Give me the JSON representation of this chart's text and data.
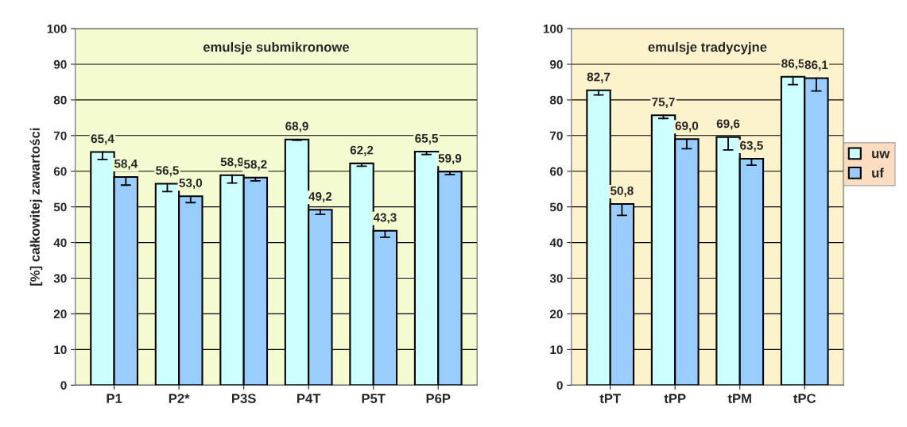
{
  "chart_data": [
    {
      "type": "bar",
      "title": "emulsje submikronowe",
      "ylabel": "[%] całkowitej zawartości",
      "categories": [
        "P1",
        "P2*",
        "P3S",
        "P4T",
        "P5T",
        "P6P"
      ],
      "ylim": [
        0,
        100
      ],
      "yticks": [
        0,
        10,
        20,
        30,
        40,
        50,
        60,
        70,
        80,
        90,
        100
      ],
      "grid": "y",
      "legend": false,
      "series": [
        {
          "color": "#ccffff",
          "values": [
            65.4,
            56.5,
            58.9,
            68.9,
            62.2,
            65.5
          ],
          "value_labels": [
            "65,4",
            "56,5",
            "58,9",
            "68,9",
            "62,2",
            "65,5"
          ],
          "errors": [
            [
              63.3,
              65.4
            ],
            [
              54.3,
              56.5
            ],
            [
              56.7,
              58.9
            ],
            [
              68.7,
              68.9
            ],
            [
              61.4,
              62.2
            ],
            [
              64.7,
              65.5
            ]
          ]
        },
        {
          "color": "#99ccff",
          "values": [
            58.4,
            53.0,
            58.2,
            49.2,
            43.3,
            59.9
          ],
          "value_labels": [
            "58,4",
            "53,0",
            "58,2",
            "49,2",
            "43,3",
            "59,9"
          ],
          "errors": [
            [
              56.1,
              58.4
            ],
            [
              51.2,
              53.0
            ],
            [
              57.3,
              58.2
            ],
            [
              47.9,
              49.2
            ],
            [
              41.5,
              43.3
            ],
            [
              59.1,
              59.9
            ]
          ]
        }
      ]
    },
    {
      "type": "bar",
      "title": "emulsje tradycyjne",
      "categories": [
        "tPT",
        "tPP",
        "tPM",
        "tPC"
      ],
      "ylim": [
        0,
        100
      ],
      "yticks": [
        0,
        10,
        20,
        30,
        40,
        50,
        60,
        70,
        80,
        90,
        100
      ],
      "grid": "y",
      "legend": "right",
      "series": [
        {
          "name": "uw",
          "color": "#ccffff",
          "values": [
            82.7,
            75.7,
            69.6,
            86.5
          ],
          "value_labels": [
            "82,7",
            "75,7",
            "69,6",
            "86,5"
          ],
          "errors": [
            [
              81.4,
              82.7
            ],
            [
              74.8,
              75.7
            ],
            [
              66.0,
              69.6
            ],
            [
              84.3,
              86.5
            ]
          ]
        },
        {
          "name": "uf",
          "color": "#99ccff",
          "values": [
            50.8,
            69.0,
            63.5,
            86.1
          ],
          "value_labels": [
            "50,8",
            "69,0",
            "63,5",
            "86,1"
          ],
          "errors": [
            [
              47.6,
              50.8
            ],
            [
              66.3,
              69.0
            ],
            [
              61.7,
              63.5
            ],
            [
              82.5,
              86.1
            ]
          ]
        }
      ]
    }
  ]
}
